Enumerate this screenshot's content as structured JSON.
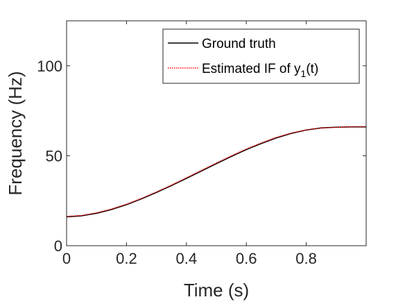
{
  "chart_data": {
    "type": "line",
    "xlabel": "Time (s)",
    "ylabel": "Frequency (Hz)",
    "xlim": [
      0,
      1
    ],
    "ylim": [
      0,
      125
    ],
    "x_ticks": [
      0,
      0.2,
      0.4,
      0.6,
      0.8
    ],
    "x_tick_labels": [
      "0",
      "0.2",
      "0.4",
      "0.6",
      "0.8"
    ],
    "y_ticks": [
      0,
      50,
      100
    ],
    "y_tick_labels": [
      "0",
      "50",
      "100"
    ],
    "grid": false,
    "legend_position": "top-right",
    "series": [
      {
        "name": "Ground truth",
        "color": "#000000",
        "style": "solid",
        "x": [
          0,
          0.05,
          0.1,
          0.15,
          0.2,
          0.25,
          0.3,
          0.35,
          0.4,
          0.45,
          0.5,
          0.55,
          0.6,
          0.65,
          0.7,
          0.75,
          0.8,
          0.85,
          0.9,
          0.95,
          1.0
        ],
        "values": [
          16.0,
          16.6,
          18.0,
          20.1,
          22.8,
          26.0,
          29.6,
          33.4,
          37.4,
          41.5,
          45.6,
          49.6,
          53.4,
          56.8,
          59.9,
          62.4,
          64.3,
          65.5,
          65.9,
          66.0,
          66.0
        ]
      },
      {
        "name": "Estimated IF of y",
        "color": "#ff0000",
        "style": "dotted",
        "x": [
          0,
          0.05,
          0.1,
          0.15,
          0.2,
          0.25,
          0.3,
          0.35,
          0.4,
          0.45,
          0.5,
          0.55,
          0.6,
          0.65,
          0.7,
          0.75,
          0.8,
          0.85,
          0.9,
          0.95,
          1.0
        ],
        "values": [
          16.3,
          16.8,
          18.3,
          20.4,
          23.1,
          26.3,
          29.9,
          33.7,
          37.8,
          41.9,
          46.0,
          50.0,
          53.8,
          57.2,
          60.2,
          62.6,
          64.4,
          65.4,
          65.8,
          66.1,
          66.2
        ]
      }
    ],
    "legend_entries": [
      {
        "label": "Ground truth",
        "color": "#000000",
        "style": "solid"
      },
      {
        "label_prefix": "Estimated IF of y",
        "label_sub": "1",
        "label_suffix": "(t)",
        "color": "#ff0000",
        "style": "dotted"
      }
    ]
  }
}
